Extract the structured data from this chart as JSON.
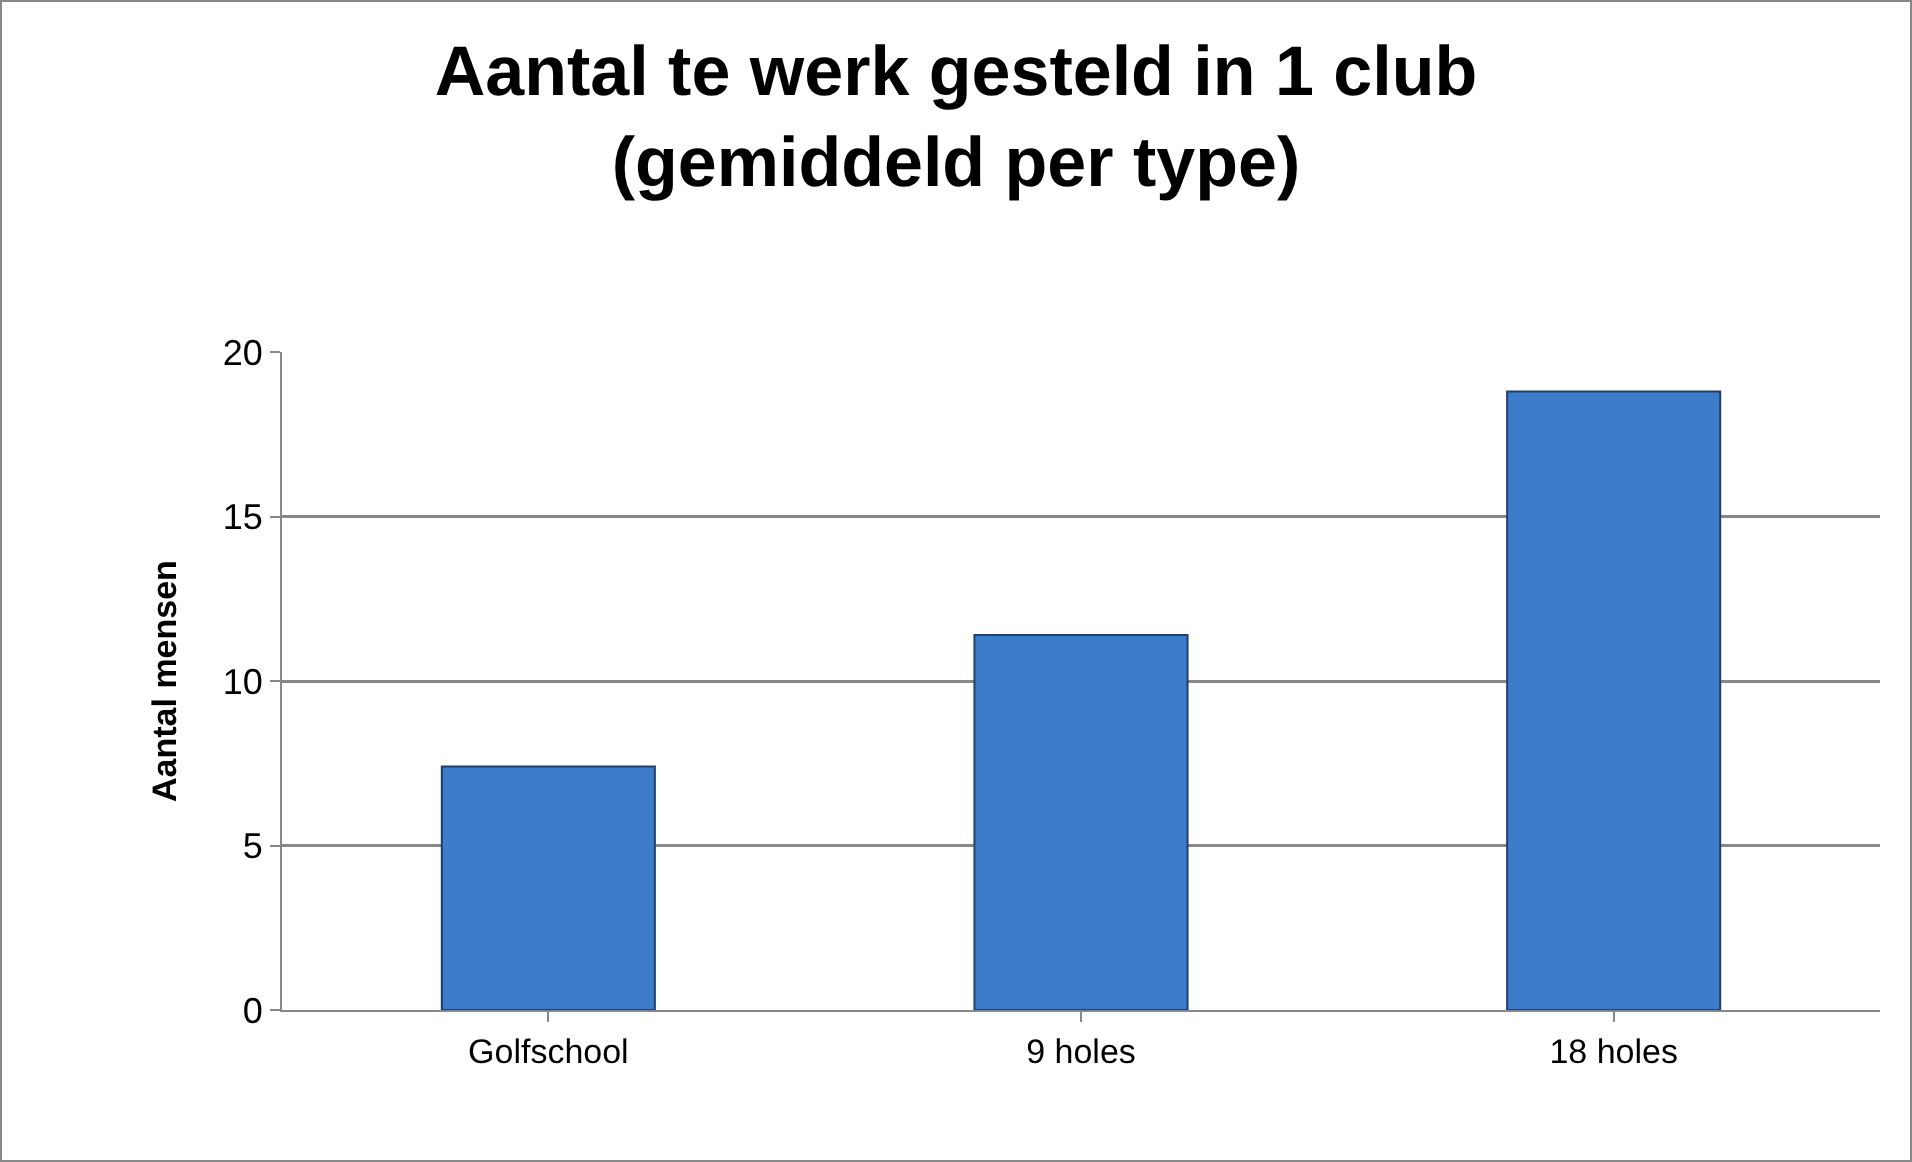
{
  "chart_data": {
    "type": "bar",
    "title": "Aantal te werk gesteld in 1 club\n(gemiddeld per type)",
    "ylabel": "Aantal mensen",
    "categories": [
      "Golfschool",
      "9 holes",
      "18 holes"
    ],
    "values": [
      7.4,
      11.4,
      18.8
    ],
    "color": "#3d7cc9",
    "ylim": [
      0,
      20
    ],
    "yticks": [
      0,
      5,
      10,
      15,
      20
    ],
    "grid": "y"
  }
}
